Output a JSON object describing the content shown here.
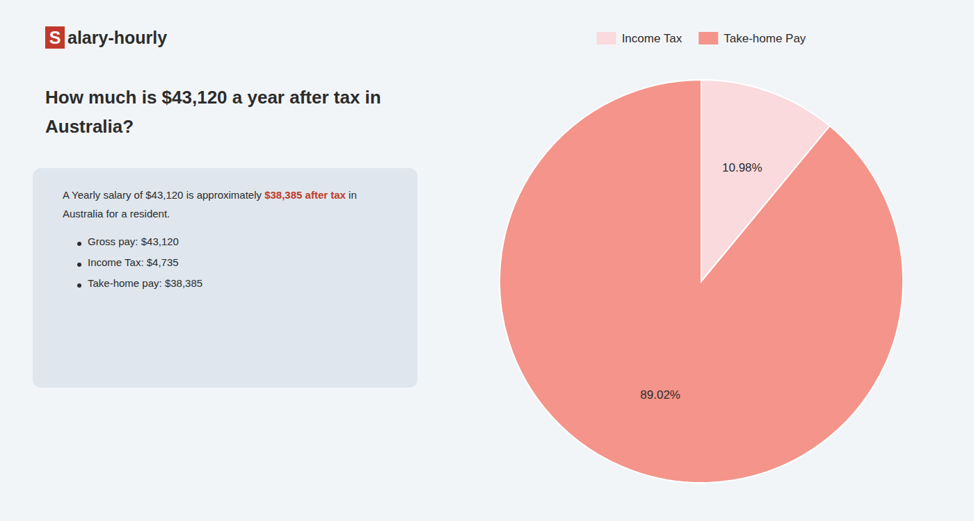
{
  "chart_data": {
    "type": "pie",
    "title": [
      "How much is $43,120 a year after tax in",
      "Australia?"
    ],
    "annotations": [
      [
        {
          "text": "S",
          "color": "#c0392b"
        },
        {
          "text": "alary-hourly"
        }
      ],
      [
        {
          "text": "A Yearly salary of $43,120 is approximately "
        },
        {
          "text": "$38,385 after tax",
          "color": "#c0392b"
        },
        {
          "text": " in"
        }
      ],
      [
        {
          "text": "Australia for a resident."
        }
      ],
      [
        {
          "text": "Gross pay: $43,120"
        }
      ],
      [
        {
          "text": "Income Tax: $4,735"
        }
      ],
      [
        {
          "text": "Take-home pay: $38,385"
        }
      ]
    ],
    "categories": [
      "Income Tax",
      "Take-home Pay"
    ],
    "values": [
      10.98,
      89.02
    ],
    "value_labels": [
      "10.98%",
      "89.02%"
    ],
    "colors": [
      "#fadadd",
      "#f4948a"
    ],
    "data_labels": true,
    "legend": "top"
  }
}
